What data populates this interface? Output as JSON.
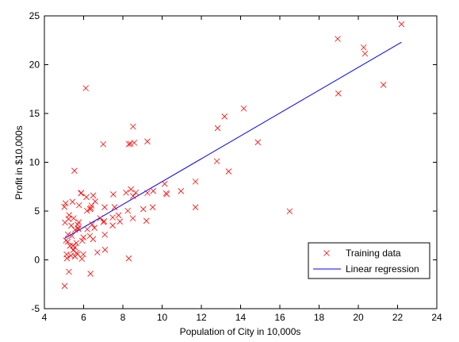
{
  "chart_data": {
    "type": "scatter",
    "title": "",
    "xlabel": "Population of City in 10,000s",
    "ylabel": "Profit in $10,000s",
    "xlim": [
      4,
      24
    ],
    "ylim": [
      -5,
      25
    ],
    "xticks": [
      4,
      6,
      8,
      10,
      12,
      14,
      16,
      18,
      20,
      22,
      24
    ],
    "yticks": [
      -5,
      0,
      5,
      10,
      15,
      20,
      25
    ],
    "grid": false,
    "legend_position": "bottom-right",
    "series": [
      {
        "name": "Training data",
        "type": "scatter",
        "marker": "x",
        "color": "#ff0000",
        "points": [
          [
            6.11,
            17.59
          ],
          [
            5.53,
            9.13
          ],
          [
            8.52,
            13.66
          ],
          [
            7.0,
            11.85
          ],
          [
            5.86,
            6.82
          ],
          [
            8.38,
            11.89
          ],
          [
            7.48,
            4.35
          ],
          [
            8.58,
            12.0
          ],
          [
            6.49,
            6.6
          ],
          [
            5.05,
            3.82
          ],
          [
            5.71,
            3.25
          ],
          [
            14.16,
            15.51
          ],
          [
            5.73,
            3.16
          ],
          [
            8.41,
            7.23
          ],
          [
            5.64,
            0.72
          ],
          [
            5.37,
            3.51
          ],
          [
            6.37,
            5.3
          ],
          [
            5.13,
            0.56
          ],
          [
            6.43,
            3.65
          ],
          [
            7.07,
            5.39
          ],
          [
            6.19,
            3.14
          ],
          [
            20.27,
            21.77
          ],
          [
            5.49,
            4.26
          ],
          [
            6.33,
            5.19
          ],
          [
            5.56,
            3.08
          ],
          [
            18.95,
            22.64
          ],
          [
            12.83,
            13.5
          ],
          [
            10.96,
            7.05
          ],
          [
            13.18,
            14.69
          ],
          [
            22.2,
            24.15
          ],
          [
            5.25,
            -1.22
          ],
          [
            6.59,
            5.99
          ],
          [
            9.25,
            12.13
          ],
          [
            5.19,
            1.85
          ],
          [
            8.52,
            6.54
          ],
          [
            5.26,
            4.59
          ],
          [
            6.17,
            5.03
          ],
          [
            7.58,
            5.4
          ],
          [
            9.25,
            6.86
          ],
          [
            5.3,
            1.44
          ],
          [
            5.7,
            3.61
          ],
          [
            6.14,
            6.43
          ],
          [
            7.51,
            6.71
          ],
          [
            5.23,
            4.19
          ],
          [
            7.48,
            3.52
          ],
          [
            5.4,
            2.46
          ],
          [
            8.16,
            6.89
          ],
          [
            6.55,
            3.28
          ],
          [
            9.52,
            5.39
          ],
          [
            6.7,
            0.76
          ],
          [
            5.1,
            1.98
          ],
          [
            6.32,
            2.45
          ],
          [
            5.99,
            2.3
          ],
          [
            5.56,
            1.28
          ],
          [
            5.63,
            1.73
          ],
          [
            6.48,
            2.12
          ],
          [
            5.56,
            0.35
          ],
          [
            5.35,
            0.44
          ],
          [
            7.09,
            1.03
          ],
          [
            20.34,
            21.13
          ],
          [
            6.35,
            -1.42
          ],
          [
            21.28,
            17.93
          ],
          [
            8.25,
            5.03
          ],
          [
            7.01,
            3.86
          ],
          [
            7.08,
            2.58
          ],
          [
            5.93,
            1.96
          ],
          [
            5.91,
            0.11
          ],
          [
            7.85,
            3.93
          ],
          [
            8.51,
            4.26
          ],
          [
            5.98,
            0.57
          ],
          [
            5.46,
            1.45
          ],
          [
            16.5,
            4.98
          ],
          [
            5.75,
            3.86
          ],
          [
            5.03,
            -2.68
          ],
          [
            8.3,
            0.15
          ],
          [
            5.43,
            5.95
          ],
          [
            5.77,
            5.6
          ],
          [
            8.3,
            11.86
          ],
          [
            8.66,
            6.89
          ],
          [
            9.04,
            5.2
          ],
          [
            11.7,
            8.02
          ],
          [
            11.7,
            5.39
          ],
          [
            10.24,
            6.73
          ],
          [
            10.13,
            7.79
          ],
          [
            5.08,
            5.8
          ],
          [
            5.69,
            0.59
          ],
          [
            5.47,
            1.0
          ],
          [
            6.84,
            4.27
          ],
          [
            9.2,
            4.0
          ],
          [
            13.39,
            9.06
          ],
          [
            14.88,
            12.05
          ],
          [
            12.79,
            10.1
          ],
          [
            18.98,
            17.05
          ],
          [
            6.4,
            5.56
          ],
          [
            10.2,
            6.82
          ],
          [
            9.55,
            7.06
          ],
          [
            7.78,
            4.57
          ],
          [
            7.04,
            3.96
          ],
          [
            5.02,
            5.43
          ],
          [
            5.2,
            2.6
          ],
          [
            5.88,
            6.87
          ],
          [
            5.15,
            0.16
          ]
        ]
      },
      {
        "name": "Linear regression",
        "type": "line",
        "color": "#0000ff",
        "points": [
          [
            5.03,
            2.2
          ],
          [
            22.2,
            22.3
          ]
        ]
      }
    ]
  }
}
